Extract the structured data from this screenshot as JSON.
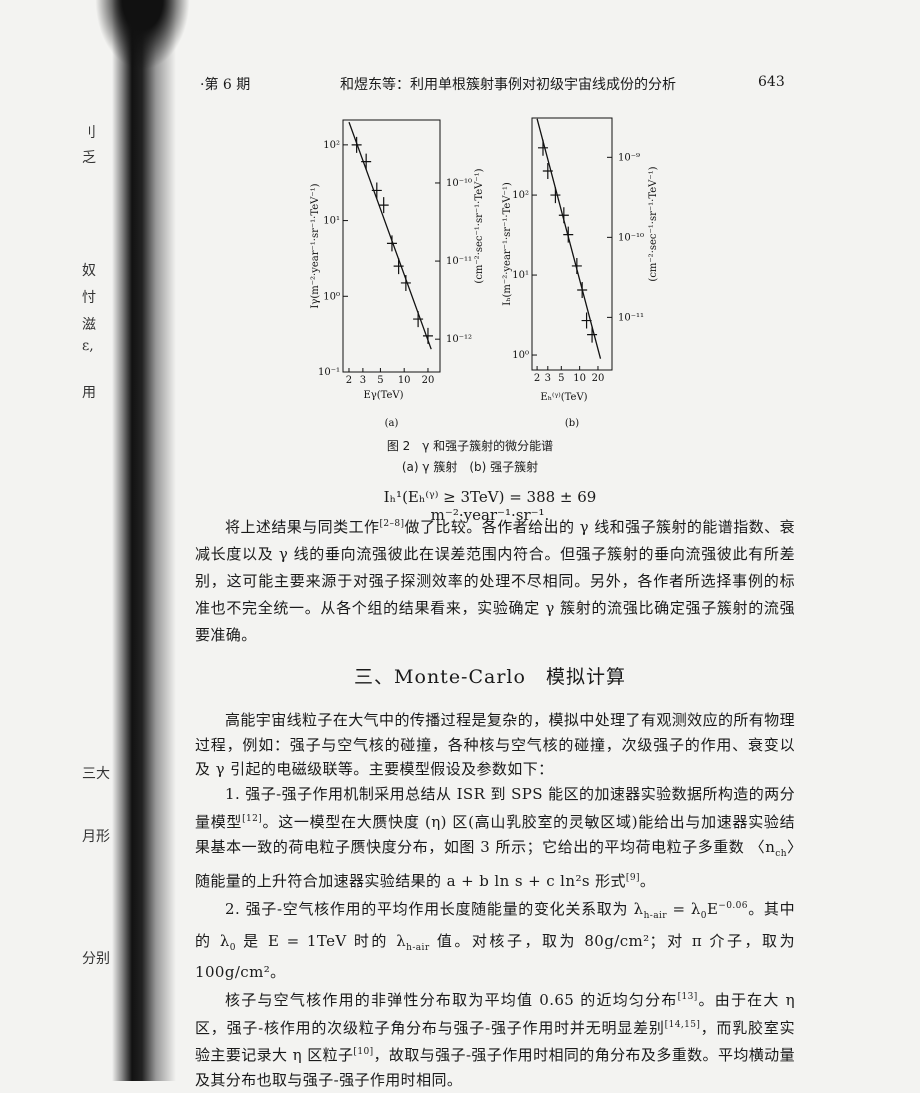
{
  "header": {
    "issue": "·第 6 期",
    "title": "和煜东等：利用单根簇射事例对初级宇宙线成份的分析",
    "page": "643"
  },
  "chart_data": [
    {
      "type": "scatter",
      "panel": "(a)",
      "xlabel": "Eγ(TeV)",
      "ylabel": "Iγ(m⁻²·year⁻¹·sr⁻¹·TeV⁻¹)",
      "y2label": "(cm⁻²·sec⁻¹·sr⁻¹·TeV⁻¹)",
      "log_x": true,
      "log_y": true,
      "color": "#111111",
      "xlim": [
        1.68,
        28.4
      ],
      "ylim": [
        0.1,
        213
      ],
      "y2lim": [
        3.8e-13,
        6.4e-10
      ],
      "xticks": [
        2,
        3,
        5,
        10,
        20
      ],
      "yticks": [
        {
          "value": 0.1,
          "label": "10⁻¹"
        },
        {
          "value": 1,
          "label": "10⁰"
        },
        {
          "value": 10,
          "label": "10¹"
        },
        {
          "value": 100,
          "label": "10²"
        }
      ],
      "y2ticks": [
        {
          "value": 1e-12,
          "label": "10⁻¹²"
        },
        {
          "value": 1e-11,
          "label": "10⁻¹¹"
        },
        {
          "value": 1e-10,
          "label": "10⁻¹⁰"
        }
      ],
      "points": {
        "x": [
          2.5,
          3.3,
          4.5,
          5.5,
          7,
          8.5,
          10.5,
          15,
          20
        ],
        "values": [
          100,
          60,
          25,
          16,
          5,
          2.5,
          1.5,
          0.5,
          0.3
        ]
      },
      "fit": {
        "x": [
          2,
          22
        ],
        "values": [
          200,
          0.2
        ]
      }
    },
    {
      "type": "scatter",
      "panel": "(b)",
      "xlabel": "Eₕ⁽ᵞ⁾(TeV)",
      "ylabel": "Iₕ(m⁻²·year⁻¹·sr⁻¹·TeV⁻¹)",
      "y2label": "(cm⁻²·sec⁻¹·sr⁻¹·TeV⁻¹)",
      "log_x": true,
      "log_y": true,
      "color": "#111111",
      "xlim": [
        1.65,
        34
      ],
      "ylim": [
        0.65,
        920
      ],
      "y2lim": [
        2.2e-12,
        3.1e-09
      ],
      "xticks": [
        2,
        3,
        5,
        10,
        20
      ],
      "yticks": [
        {
          "value": 1,
          "label": "10⁰"
        },
        {
          "value": 10,
          "label": "10¹"
        },
        {
          "value": 100,
          "label": "10²"
        }
      ],
      "y2ticks": [
        {
          "value": 1e-11,
          "label": "10⁻¹¹"
        },
        {
          "value": 1e-10,
          "label": "10⁻¹⁰"
        },
        {
          "value": 1e-09,
          "label": "10⁻⁹"
        }
      ],
      "points": {
        "x": [
          2.5,
          3,
          4,
          5.5,
          6.5,
          9,
          11,
          13,
          16
        ],
        "values": [
          390,
          200,
          100,
          56,
          32,
          13,
          6.5,
          2.7,
          1.8
        ]
      },
      "fit": {
        "x": [
          2,
          22
        ],
        "values": [
          900,
          0.9
        ]
      }
    }
  ],
  "figure": {
    "caption": "图 2　γ 和强子簇射的微分能谱",
    "subcaption": "(a) γ 簇射　(b) 强子簇射"
  },
  "formula": "Iₕ¹(Eₕ⁽ᵞ⁾ ≥ 3TeV) = 388 ± 69 m⁻²·year⁻¹·sr⁻¹.",
  "paragraphs": [
    [
      "将上述结果与同类工作",
      "[2–8]",
      "做了比较。各作者给出的 γ 线和强子簇射的能谱指数、衰减长度以及 γ 线的垂向流强彼此在误差范围内符合。但强子簇射的垂向流强彼此有所差别，这可能主要来源于对强子探测效率的处理不尽相同。另外，各作者所选择事例的标准也不完全统一。从各个组的结果看来，实验确定 γ 簇射的流强比确定强子簇射的流强要准确。"
    ]
  ],
  "section": "三、Monte-Carlo　模拟计算",
  "section_paragraphs": [
    [
      "高能宇宙线粒子在大气中的传播过程是复杂的，模拟中处理了有观测效应的所有物理过程，例如：强子与空气核的碰撞，各种核与空气核的碰撞，次级强子的作用、衰变以及 γ 引起的电磁级联等。主要模型假设及参数如下："
    ],
    [
      "1. 强子-强子作用机制采用总结从 ISR 到 SPS 能区的加速器实验数据所构造的两分量模型",
      "[12]",
      "。这一模型在大赝快度 (η) 区(高山乳胶室的灵敏区域)能给出与加速器实验结果基本一致的荷电粒子赝快度分布，如图 3 所示；它给出的平均荷电粒子多重数 〈n",
      "ch",
      "〉随能量的上升符合加速器实验结果的 a + b ln s + c ln²s 形式",
      "[9]",
      "。"
    ],
    [
      "2. 强子-空气核作用的平均作用长度随能量的变化关系取为 λ",
      "h-air",
      " = λ",
      "0",
      "E",
      "−0.06",
      "。其中的 λ",
      "0",
      " 是 E = 1TeV 时的 λ",
      "h-air",
      " 值。对核子，取为 80g/cm²；对 π 介子，取为 100g/cm²。"
    ],
    [
      "核子与空气核作用的非弹性分布取为平均值 0.65 的近均匀分布",
      "[13]",
      "。由于在大 η 区，强子-核作用的次级粒子角分布与强子-强子作用时并无明显差别",
      "[14,15]",
      "，而乳胶室实验主要记录大 η 区粒子",
      "[10]",
      "，故取与强子-强子作用时相同的角分布及多重数。平均横动量及其分布也取与强子-强子作用时相同。"
    ]
  ],
  "margin": [
    "刂",
    "乏",
    "奴",
    "忖",
    "滋",
    "ε,",
    "用",
    "三大",
    "月形",
    "分别"
  ]
}
